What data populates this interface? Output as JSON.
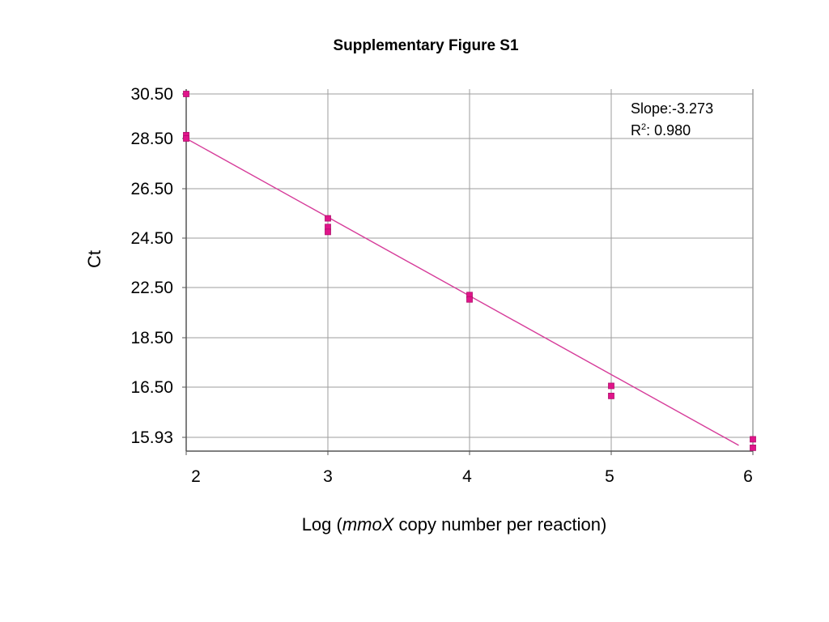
{
  "chart_data": {
    "type": "scatter",
    "title": "Supplementary Figure S1",
    "xlabel_prefix": "Log (",
    "xlabel_italic": "mmoX",
    "xlabel_suffix": " copy number per reaction)",
    "ylabel": "Ct",
    "xlim": [
      2,
      6
    ],
    "x_ticks": [
      "2",
      "3",
      "4",
      "5",
      "6"
    ],
    "y_ticks": [
      "30.50",
      "28.50",
      "26.50",
      "24.50",
      "22.50",
      "18.50",
      "16.50",
      "15.93"
    ],
    "grid": true,
    "annotation": {
      "slope_label": "Slope:-3.273",
      "r2_prefix": "R",
      "r2_sup": "2",
      "r2_suffix": ": 0.980"
    },
    "series": [
      {
        "points": [
          {
            "x": 2,
            "y": 30.5
          },
          {
            "x": 2,
            "y": 28.65
          },
          {
            "x": 2,
            "y": 28.5
          },
          {
            "x": 3,
            "y": 25.3
          },
          {
            "x": 3,
            "y": 24.95
          },
          {
            "x": 3,
            "y": 24.75
          },
          {
            "x": 4,
            "y": 21.9
          },
          {
            "x": 4,
            "y": 21.55
          },
          {
            "x": 5,
            "y": 16.55
          },
          {
            "x": 5,
            "y": 16.4
          },
          {
            "x": 6,
            "y": 15.85
          },
          {
            "x": 6,
            "y": 15.5
          }
        ],
        "color": "#e0158a"
      }
    ],
    "fit_line": {
      "x": [
        2,
        5.9
      ],
      "y": [
        28.5,
        15.6
      ],
      "color": "#d63c9a"
    },
    "colors": {
      "grid": "#9e9e9e",
      "axis": "#555555",
      "point_fill": "#e0158a",
      "point_stroke": "#b0106c"
    }
  }
}
